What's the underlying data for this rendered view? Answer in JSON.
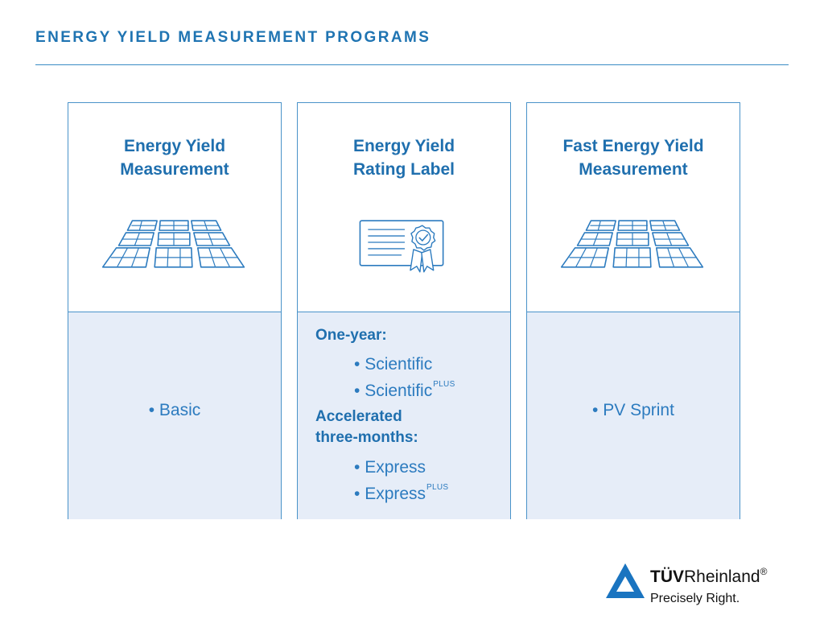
{
  "header": {
    "title": "ENERGY YIELD MEASUREMENT PROGRAMS"
  },
  "cards": [
    {
      "title_lines": [
        "Energy Yield",
        "Measurement"
      ],
      "icon": "solar-panels-icon",
      "items": [
        "Basic"
      ]
    },
    {
      "title_lines": [
        "Energy Yield",
        "Rating Label"
      ],
      "icon": "certificate-icon",
      "groups": [
        {
          "heading_lines": [
            "One-year:"
          ],
          "items": [
            {
              "label": "Scientific",
              "sup": ""
            },
            {
              "label": "Scientific",
              "sup": "PLUS"
            }
          ]
        },
        {
          "heading_lines": [
            "Accelerated",
            "three-months:"
          ],
          "items": [
            {
              "label": "Express",
              "sup": ""
            },
            {
              "label": "Express",
              "sup": "PLUS"
            }
          ]
        }
      ]
    },
    {
      "title_lines": [
        "Fast Energy Yield",
        "Measurement"
      ],
      "icon": "solar-panels-icon",
      "items": [
        "PV Sprint"
      ]
    }
  ],
  "logo": {
    "brand_bold": "TÜV",
    "brand_rest": "Rheinland",
    "registered": "®",
    "tagline": "Precisely Right."
  },
  "colors": {
    "primary": "#1f6fae",
    "panel_fill": "#e6edf8",
    "border": "#4a93c9",
    "logo_blue": "#1a74c0"
  }
}
